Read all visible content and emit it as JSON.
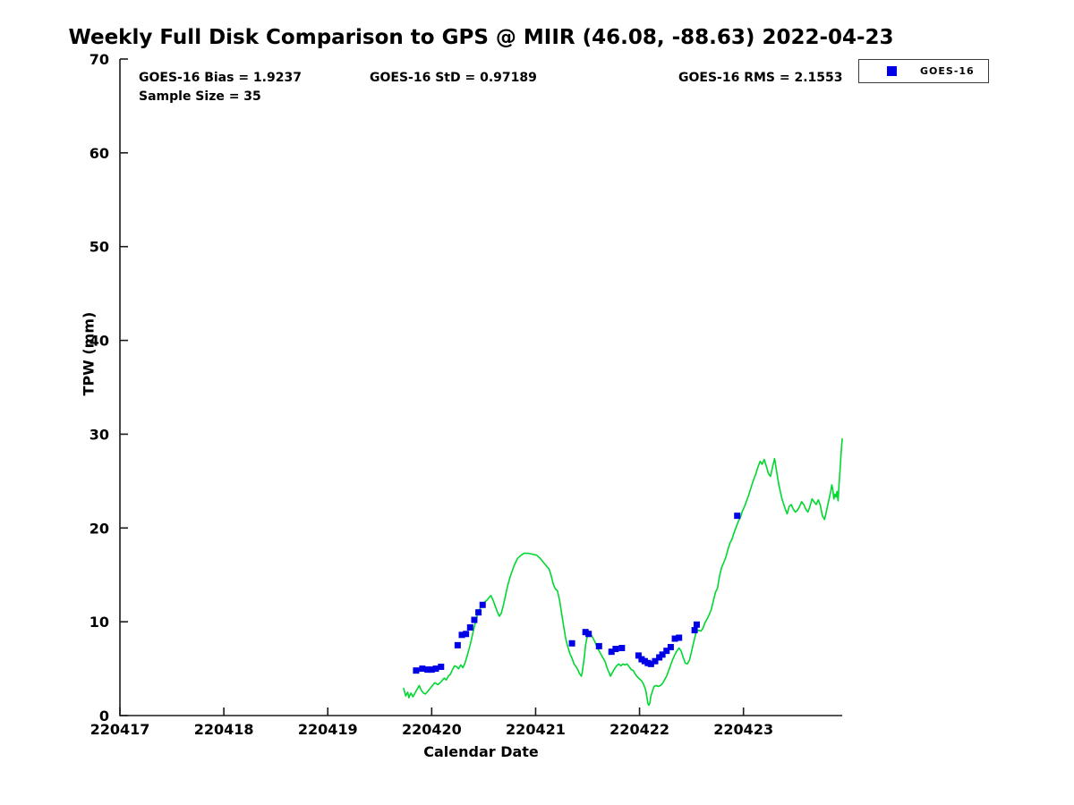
{
  "title": "Weekly Full Disk Comparison to GPS @ MIIR (46.08, -88.63) 2022-04-23",
  "stats": {
    "bias": "GOES-16 Bias = 1.9237",
    "std": "GOES-16 StD = 0.97189",
    "rms": "GOES-16 RMS = 2.1553",
    "sample_size": "Sample Size = 35"
  },
  "axes": {
    "xlabel": "Calendar Date",
    "ylabel": "TPW (mm)"
  },
  "chart_data": {
    "type": "line",
    "title": "Weekly Full Disk Comparison to GPS @ MIIR (46.08, -88.63) 2022-04-23",
    "xlabel": "Calendar Date",
    "ylabel": "TPW (mm)",
    "xlim": [
      220417,
      220423.95
    ],
    "ylim": [
      0,
      70
    ],
    "x_ticks": [
      220417,
      220418,
      220419,
      220420,
      220421,
      220422,
      220423
    ],
    "x_tick_labels": [
      "220417",
      "220418",
      "220419",
      "220420",
      "220421",
      "220422",
      "220423"
    ],
    "y_ticks": [
      0,
      10,
      20,
      30,
      40,
      50,
      60,
      70
    ],
    "grid": false,
    "legend_position": "top-right",
    "legend": {
      "entries": [
        {
          "label": "GOES-16",
          "marker": "square",
          "color": "#0000e6"
        }
      ]
    },
    "annotations": [
      "GOES-16 Bias = 1.9237",
      "GOES-16 StD = 0.97189",
      "GOES-16 RMS = 2.1553",
      "Sample Size = 35"
    ],
    "series": [
      {
        "name": "GPS",
        "plot_type": "line",
        "color": "#00d830",
        "points": [
          [
            220419.73,
            2.9
          ],
          [
            220419.75,
            2.1
          ],
          [
            220419.77,
            2.5
          ],
          [
            220419.78,
            1.9
          ],
          [
            220419.8,
            2.4
          ],
          [
            220419.82,
            2.0
          ],
          [
            220419.85,
            2.6
          ],
          [
            220419.87,
            3.0
          ],
          [
            220419.88,
            3.2
          ],
          [
            220419.9,
            2.7
          ],
          [
            220419.92,
            2.4
          ],
          [
            220419.94,
            2.3
          ],
          [
            220419.97,
            2.7
          ],
          [
            220420.0,
            3.1
          ],
          [
            220420.03,
            3.5
          ],
          [
            220420.06,
            3.3
          ],
          [
            220420.09,
            3.6
          ],
          [
            220420.12,
            4.0
          ],
          [
            220420.14,
            3.8
          ],
          [
            220420.16,
            4.2
          ],
          [
            220420.18,
            4.4
          ],
          [
            220420.2,
            4.9
          ],
          [
            220420.22,
            5.3
          ],
          [
            220420.24,
            5.2
          ],
          [
            220420.26,
            5.0
          ],
          [
            220420.28,
            5.4
          ],
          [
            220420.3,
            5.1
          ],
          [
            220420.32,
            5.6
          ],
          [
            220420.34,
            6.3
          ],
          [
            220420.36,
            7.1
          ],
          [
            220420.38,
            8.0
          ],
          [
            220420.4,
            9.0
          ],
          [
            220420.42,
            9.9
          ],
          [
            220420.44,
            10.7
          ],
          [
            220420.46,
            11.3
          ],
          [
            220420.48,
            11.7
          ],
          [
            220420.5,
            12.0
          ],
          [
            220420.52,
            12.2
          ],
          [
            220420.54,
            12.4
          ],
          [
            220420.56,
            12.7
          ],
          [
            220420.57,
            12.8
          ],
          [
            220420.59,
            12.3
          ],
          [
            220420.61,
            11.7
          ],
          [
            220420.63,
            11.1
          ],
          [
            220420.65,
            10.6
          ],
          [
            220420.67,
            10.9
          ],
          [
            220420.69,
            11.8
          ],
          [
            220420.71,
            12.8
          ],
          [
            220420.73,
            13.8
          ],
          [
            220420.75,
            14.6
          ],
          [
            220420.77,
            15.3
          ],
          [
            220420.79,
            15.9
          ],
          [
            220420.81,
            16.4
          ],
          [
            220420.83,
            16.8
          ],
          [
            220420.86,
            17.1
          ],
          [
            220420.89,
            17.3
          ],
          [
            220420.93,
            17.3
          ],
          [
            220420.97,
            17.2
          ],
          [
            220421.01,
            17.1
          ],
          [
            220421.04,
            16.8
          ],
          [
            220421.07,
            16.4
          ],
          [
            220421.1,
            16.0
          ],
          [
            220421.13,
            15.6
          ],
          [
            220421.15,
            14.9
          ],
          [
            220421.17,
            14.0
          ],
          [
            220421.19,
            13.5
          ],
          [
            220421.21,
            13.3
          ],
          [
            220421.23,
            12.3
          ],
          [
            220421.25,
            10.9
          ],
          [
            220421.27,
            9.5
          ],
          [
            220421.29,
            8.2
          ],
          [
            220421.31,
            7.3
          ],
          [
            220421.33,
            6.6
          ],
          [
            220421.35,
            6.1
          ],
          [
            220421.37,
            5.5
          ],
          [
            220421.39,
            5.2
          ],
          [
            220421.41,
            4.8
          ],
          [
            220421.42,
            4.5
          ],
          [
            220421.44,
            4.2
          ],
          [
            220421.45,
            4.7
          ],
          [
            220421.47,
            6.3
          ],
          [
            220421.48,
            7.5
          ],
          [
            220421.5,
            8.6
          ],
          [
            220421.51,
            9.0
          ],
          [
            220421.53,
            8.7
          ],
          [
            220421.55,
            8.3
          ],
          [
            220421.57,
            7.9
          ],
          [
            220421.59,
            7.3
          ],
          [
            220421.61,
            6.9
          ],
          [
            220421.64,
            6.3
          ],
          [
            220421.67,
            5.7
          ],
          [
            220421.69,
            5.0
          ],
          [
            220421.71,
            4.5
          ],
          [
            220421.72,
            4.2
          ],
          [
            220421.74,
            4.6
          ],
          [
            220421.76,
            5.0
          ],
          [
            220421.78,
            5.3
          ],
          [
            220421.8,
            5.5
          ],
          [
            220421.82,
            5.3
          ],
          [
            220421.84,
            5.5
          ],
          [
            220421.86,
            5.4
          ],
          [
            220421.88,
            5.5
          ],
          [
            220421.9,
            5.2
          ],
          [
            220421.92,
            4.9
          ],
          [
            220421.94,
            4.8
          ],
          [
            220421.96,
            4.4
          ],
          [
            220421.98,
            4.1
          ],
          [
            220422.0,
            3.9
          ],
          [
            220422.02,
            3.7
          ],
          [
            220422.04,
            3.3
          ],
          [
            220422.06,
            2.7
          ],
          [
            220422.07,
            2.0
          ],
          [
            220422.08,
            1.3
          ],
          [
            220422.09,
            1.1
          ],
          [
            220422.1,
            1.4
          ],
          [
            220422.11,
            2.1
          ],
          [
            220422.13,
            2.8
          ],
          [
            220422.14,
            3.1
          ],
          [
            220422.16,
            3.2
          ],
          [
            220422.18,
            3.1
          ],
          [
            220422.2,
            3.2
          ],
          [
            220422.22,
            3.4
          ],
          [
            220422.24,
            3.8
          ],
          [
            220422.26,
            4.2
          ],
          [
            220422.28,
            4.8
          ],
          [
            220422.3,
            5.4
          ],
          [
            220422.32,
            6.0
          ],
          [
            220422.34,
            6.5
          ],
          [
            220422.36,
            6.9
          ],
          [
            220422.38,
            7.2
          ],
          [
            220422.4,
            6.9
          ],
          [
            220422.42,
            6.2
          ],
          [
            220422.44,
            5.6
          ],
          [
            220422.46,
            5.5
          ],
          [
            220422.48,
            5.9
          ],
          [
            220422.5,
            6.8
          ],
          [
            220422.52,
            7.8
          ],
          [
            220422.54,
            8.7
          ],
          [
            220422.55,
            9.0
          ],
          [
            220422.57,
            9.1
          ],
          [
            220422.59,
            9.0
          ],
          [
            220422.61,
            9.3
          ],
          [
            220422.63,
            9.9
          ],
          [
            220422.66,
            10.5
          ],
          [
            220422.69,
            11.3
          ],
          [
            220422.71,
            12.2
          ],
          [
            220422.73,
            13.1
          ],
          [
            220422.75,
            13.6
          ],
          [
            220422.77,
            14.9
          ],
          [
            220422.79,
            15.8
          ],
          [
            220422.81,
            16.3
          ],
          [
            220422.83,
            16.9
          ],
          [
            220422.85,
            17.7
          ],
          [
            220422.87,
            18.4
          ],
          [
            220422.89,
            18.8
          ],
          [
            220422.91,
            19.5
          ],
          [
            220422.93,
            20.1
          ],
          [
            220422.95,
            20.7
          ],
          [
            220422.97,
            21.1
          ],
          [
            220422.99,
            21.8
          ],
          [
            220423.01,
            22.3
          ],
          [
            220423.03,
            22.9
          ],
          [
            220423.05,
            23.5
          ],
          [
            220423.07,
            24.2
          ],
          [
            220423.09,
            24.9
          ],
          [
            220423.12,
            25.8
          ],
          [
            220423.14,
            26.5
          ],
          [
            220423.16,
            27.1
          ],
          [
            220423.18,
            26.8
          ],
          [
            220423.2,
            27.3
          ],
          [
            220423.22,
            26.6
          ],
          [
            220423.24,
            25.8
          ],
          [
            220423.26,
            25.5
          ],
          [
            220423.28,
            26.5
          ],
          [
            220423.3,
            27.4
          ],
          [
            220423.32,
            26.0
          ],
          [
            220423.34,
            24.6
          ],
          [
            220423.37,
            23.1
          ],
          [
            220423.4,
            22.1
          ],
          [
            220423.42,
            21.5
          ],
          [
            220423.44,
            22.3
          ],
          [
            220423.46,
            22.5
          ],
          [
            220423.48,
            22.0
          ],
          [
            220423.5,
            21.7
          ],
          [
            220423.52,
            21.9
          ],
          [
            220423.54,
            22.3
          ],
          [
            220423.56,
            22.8
          ],
          [
            220423.58,
            22.5
          ],
          [
            220423.6,
            22.0
          ],
          [
            220423.62,
            21.7
          ],
          [
            220423.64,
            22.3
          ],
          [
            220423.66,
            23.1
          ],
          [
            220423.68,
            22.8
          ],
          [
            220423.7,
            22.5
          ],
          [
            220423.72,
            23.0
          ],
          [
            220423.74,
            22.4
          ],
          [
            220423.76,
            21.3
          ],
          [
            220423.78,
            20.9
          ],
          [
            220423.8,
            21.9
          ],
          [
            220423.82,
            22.9
          ],
          [
            220423.84,
            23.9
          ],
          [
            220423.85,
            24.6
          ],
          [
            220423.86,
            24.1
          ],
          [
            220423.87,
            23.1
          ],
          [
            220423.88,
            23.6
          ],
          [
            220423.89,
            23.3
          ],
          [
            220423.9,
            23.9
          ],
          [
            220423.91,
            22.9
          ],
          [
            220423.92,
            24.7
          ],
          [
            220423.93,
            26.3
          ],
          [
            220423.94,
            28.0
          ],
          [
            220423.95,
            29.5
          ]
        ]
      },
      {
        "name": "GOES-16",
        "plot_type": "scatter",
        "marker": "square",
        "color": "#0000e6",
        "points": [
          [
            220419.85,
            4.8
          ],
          [
            220419.91,
            5.0
          ],
          [
            220419.96,
            4.9
          ],
          [
            220420.0,
            4.9
          ],
          [
            220420.04,
            5.0
          ],
          [
            220420.09,
            5.2
          ],
          [
            220420.25,
            7.5
          ],
          [
            220420.29,
            8.6
          ],
          [
            220420.33,
            8.7
          ],
          [
            220420.37,
            9.4
          ],
          [
            220420.41,
            10.2
          ],
          [
            220420.45,
            11.0
          ],
          [
            220420.49,
            11.8
          ],
          [
            220421.35,
            7.7
          ],
          [
            220421.48,
            8.9
          ],
          [
            220421.51,
            8.7
          ],
          [
            220421.61,
            7.4
          ],
          [
            220421.73,
            6.8
          ],
          [
            220421.77,
            7.1
          ],
          [
            220421.83,
            7.2
          ],
          [
            220421.99,
            6.4
          ],
          [
            220422.02,
            6.0
          ],
          [
            220422.05,
            5.8
          ],
          [
            220422.08,
            5.6
          ],
          [
            220422.11,
            5.5
          ],
          [
            220422.15,
            5.8
          ],
          [
            220422.19,
            6.2
          ],
          [
            220422.22,
            6.5
          ],
          [
            220422.26,
            6.9
          ],
          [
            220422.3,
            7.3
          ],
          [
            220422.34,
            8.2
          ],
          [
            220422.38,
            8.3
          ],
          [
            220422.53,
            9.1
          ],
          [
            220422.55,
            9.7
          ],
          [
            220422.94,
            21.3
          ]
        ]
      }
    ]
  }
}
